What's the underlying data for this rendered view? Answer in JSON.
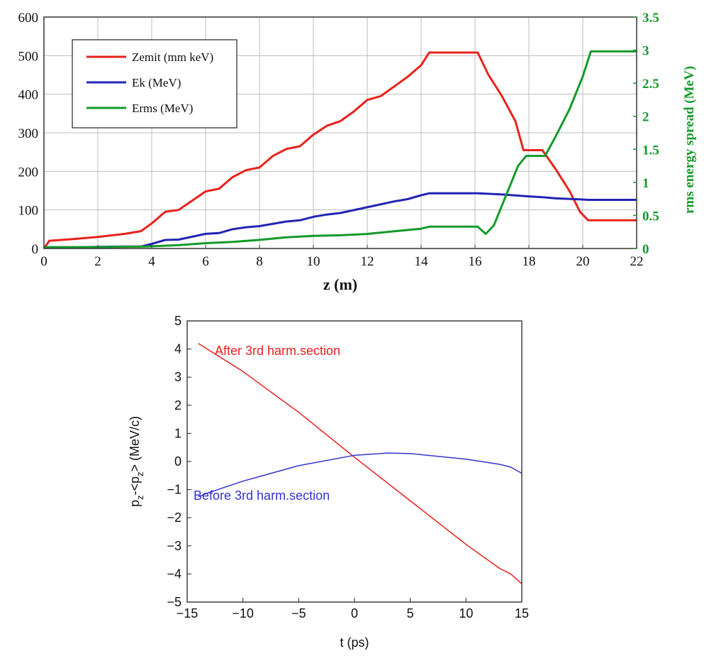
{
  "chart_data": [
    {
      "type": "line",
      "xlabel": "z (m)",
      "ylabel": "",
      "y2label": "rms energy spread (MeV)",
      "xlim": [
        0,
        22
      ],
      "ylim": [
        0,
        600
      ],
      "y2lim": [
        0,
        3.5
      ],
      "xticks": [
        "0",
        "2",
        "4",
        "6",
        "8",
        "10",
        "12",
        "14",
        "16",
        "18",
        "20",
        "22"
      ],
      "yticks": [
        "0",
        "100",
        "200",
        "300",
        "400",
        "500",
        "600"
      ],
      "y2ticks": [
        "0",
        "0.5",
        "1",
        "1.5",
        "2",
        "2.5",
        "3",
        "3.5"
      ],
      "grid": true,
      "legend": "top-left",
      "colors": {
        "Zemit": "#e8221c",
        "Ek": "#2424b4",
        "Erms": "#139a2a",
        "right_axis": "#139a2a"
      },
      "series": [
        {
          "name": "Zemit (mm keV)",
          "axis": "left",
          "x": [
            0,
            0.2,
            1,
            2,
            3,
            3.6,
            4,
            4.5,
            5,
            6,
            6.5,
            7,
            7.5,
            8,
            8.5,
            9,
            9.5,
            10,
            10.5,
            11,
            11.5,
            12,
            12.5,
            13,
            13.5,
            14,
            14.3,
            16.1,
            16.5,
            17,
            17.5,
            17.8,
            18.5,
            19,
            19.5,
            19.9,
            20.2,
            22
          ],
          "y": [
            0,
            20,
            24,
            30,
            38,
            45,
            65,
            95,
            100,
            148,
            155,
            185,
            203,
            210,
            240,
            258,
            265,
            295,
            318,
            330,
            355,
            385,
            395,
            420,
            445,
            475,
            508,
            508,
            450,
            395,
            330,
            255,
            255,
            205,
            150,
            95,
            73,
            73
          ]
        },
        {
          "name": "Ek (MeV)",
          "axis": "left",
          "x": [
            0,
            1,
            2,
            3,
            3.6,
            4,
            4.5,
            5,
            6,
            6.5,
            7,
            7.5,
            8,
            9,
            9.5,
            10,
            10.5,
            11,
            12,
            13,
            13.5,
            14,
            14.3,
            16.1,
            17,
            18,
            18.5,
            19,
            20,
            20.2,
            22
          ],
          "y": [
            3,
            3,
            4,
            5,
            5,
            12,
            22,
            23,
            38,
            40,
            50,
            55,
            58,
            70,
            73,
            82,
            88,
            92,
            107,
            122,
            128,
            138,
            143,
            143,
            140,
            135,
            133,
            130,
            127,
            126,
            126
          ]
        },
        {
          "name": "Erms (MeV)",
          "axis": "right",
          "x": [
            0,
            2,
            3.8,
            5,
            6,
            7,
            8,
            9,
            10,
            11,
            12,
            13,
            14,
            14.3,
            16.1,
            16.4,
            16.7,
            17.2,
            17.6,
            17.9,
            18.6,
            19,
            19.5,
            20,
            20.3,
            22
          ],
          "y": [
            0.02,
            0.02,
            0.03,
            0.05,
            0.08,
            0.1,
            0.13,
            0.17,
            0.19,
            0.2,
            0.22,
            0.26,
            0.3,
            0.33,
            0.33,
            0.22,
            0.35,
            0.85,
            1.25,
            1.4,
            1.4,
            1.7,
            2.1,
            2.6,
            2.98,
            2.98
          ]
        }
      ]
    },
    {
      "type": "line",
      "xlabel": "t (ps)",
      "ylabel": "p_z-<p_z> (MeV/c)",
      "ylabel_main": "p",
      "ylabel_sub1": "z",
      "ylabel_mid": "-<p",
      "ylabel_sub2": "z",
      "ylabel_end": "> (MeV/c)",
      "xlim": [
        -15,
        15
      ],
      "ylim": [
        -5,
        5
      ],
      "xticks": [
        "−15",
        "−10",
        "−5",
        "0",
        "5",
        "10",
        "15"
      ],
      "yticks": [
        "−5",
        "−4",
        "−3",
        "−2",
        "−1",
        "0",
        "1",
        "2",
        "3",
        "4",
        "5"
      ],
      "grid": false,
      "colors": {
        "after": "#e8221c",
        "before": "#3535c9"
      },
      "series": [
        {
          "name": "After 3rd harm.section",
          "x": [
            -14,
            -13,
            -10,
            -5,
            0,
            5,
            10,
            13,
            14,
            15
          ],
          "y": [
            4.2,
            3.95,
            3.2,
            1.75,
            0.15,
            -1.4,
            -2.95,
            -3.8,
            -4.0,
            -4.35
          ]
        },
        {
          "name": "Before 3rd harm.section",
          "x": [
            -14,
            -13,
            -10,
            -5,
            0,
            3,
            5,
            10,
            13,
            14,
            15
          ],
          "y": [
            -1.25,
            -1.1,
            -0.7,
            -0.15,
            0.22,
            0.3,
            0.28,
            0.08,
            -0.1,
            -0.2,
            -0.42
          ]
        }
      ]
    }
  ]
}
